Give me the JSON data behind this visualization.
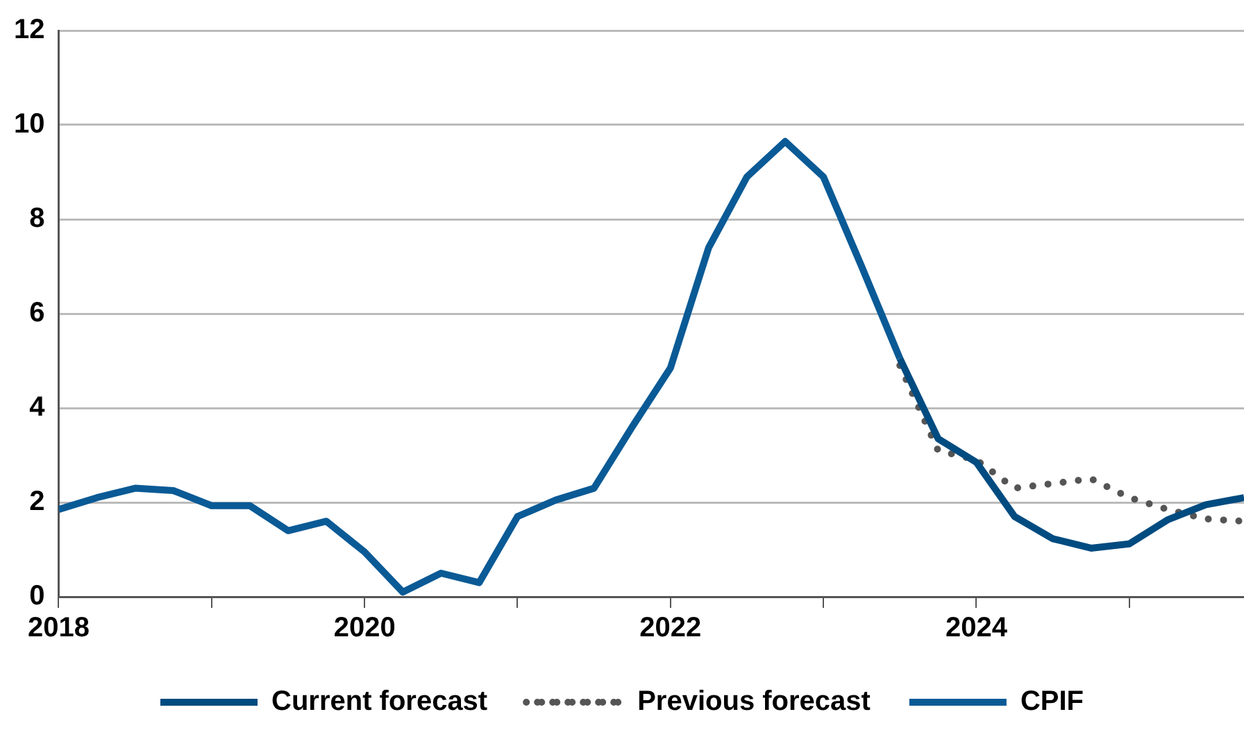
{
  "chart_data": {
    "type": "line",
    "xlim": [
      2018,
      2025.75
    ],
    "xticks": [
      2018,
      {
        "value": 2019,
        "label": null
      },
      2020,
      {
        "value": 2021,
        "label": null
      },
      2022,
      {
        "value": 2023,
        "label": null
      },
      2024,
      {
        "value": 2025,
        "label": null
      }
    ],
    "ylim": [
      0,
      12
    ],
    "yticks": [
      0,
      2,
      4,
      6,
      8,
      10,
      12
    ],
    "grid": "y",
    "legend": "bottom",
    "marker": "none",
    "series": [
      {
        "name": "Current forecast",
        "color": "#004b80",
        "line_style": "solid",
        "x": [
          2023.5,
          2023.75,
          2024,
          2024.25,
          2024.5,
          2024.75,
          2025,
          2025.25,
          2025.5,
          2025.75
        ],
        "values": [
          5.05,
          3.35,
          2.85,
          1.7,
          1.23,
          1.03,
          1.12,
          1.63,
          1.95,
          2.1
        ]
      },
      {
        "name": "Previous forecast",
        "color": "#555555",
        "line_style": "dotted",
        "x": [
          2023.5,
          2023.75,
          2024,
          2024.25,
          2024.5,
          2024.75,
          2025,
          2025.25,
          2025.5,
          2025.75
        ],
        "values": [
          4.9,
          3.1,
          2.9,
          2.3,
          2.4,
          2.5,
          2.1,
          1.85,
          1.65,
          1.6
        ]
      },
      {
        "name": "CPIF",
        "color": "#0a5a96",
        "line_style": "solid",
        "x": [
          2018,
          2018.25,
          2018.5,
          2018.75,
          2019,
          2019.25,
          2019.5,
          2019.75,
          2020,
          2020.25,
          2020.5,
          2020.75,
          2021,
          2021.25,
          2021.5,
          2021.75,
          2022,
          2022.25,
          2022.5,
          2022.75,
          2023,
          2023.25,
          2023.5
        ],
        "values": [
          1.85,
          2.1,
          2.3,
          2.25,
          1.93,
          1.93,
          1.4,
          1.6,
          0.95,
          0.1,
          0.5,
          0.3,
          1.7,
          2.05,
          2.3,
          3.6,
          4.85,
          7.4,
          8.9,
          9.65,
          8.9,
          7.0,
          5.05
        ]
      }
    ]
  }
}
